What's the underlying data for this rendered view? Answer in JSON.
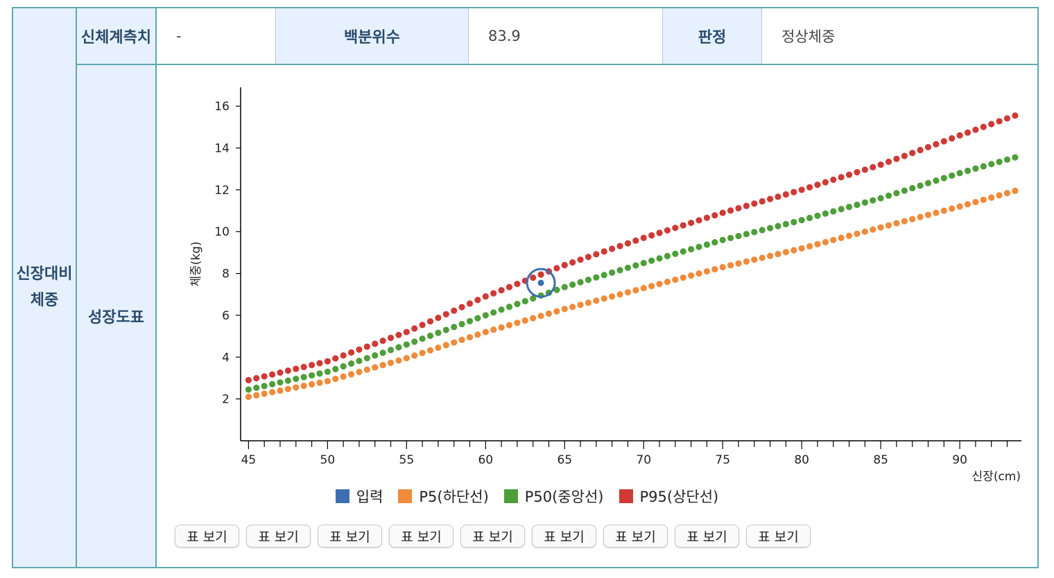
{
  "row_header": "신장대비\n체중",
  "measure_label": "신체계측치",
  "measure_value": "-",
  "percentile_label": "백분위수",
  "percentile_value": "83.9",
  "judgment_label": "판정",
  "judgment_value": "정상체중",
  "chart_section_label": "성장도표",
  "table_button_label": "표 보기",
  "table_button_count": 9,
  "colors": {
    "border": "#5fa8b0",
    "header_bg": "#e6f1fd",
    "input": "#3d6fb0",
    "p5": "#ef8b3a",
    "p50": "#4e9e3a",
    "p95": "#cf3a35"
  },
  "chart_data": {
    "type": "scatter",
    "xlabel": "신장(cm)",
    "ylabel": "체중(kg)",
    "xlim": [
      44.5,
      93.9
    ],
    "ylim": [
      0,
      16.9
    ],
    "x_ticks": [
      45,
      50,
      55,
      60,
      65,
      70,
      75,
      80,
      85,
      90
    ],
    "y_ticks": [
      2,
      4,
      6,
      8,
      10,
      12,
      14,
      16
    ],
    "x_range": [
      45,
      93.5
    ],
    "x_step": 0.5,
    "legend_position": "bottom",
    "series": [
      {
        "name": "입력",
        "color": "#3d6fb0",
        "points": [
          [
            63.5,
            7.55
          ]
        ]
      },
      {
        "name": "P5(하단선)",
        "color": "#ef8b3a",
        "anchors": [
          [
            45,
            2.1
          ],
          [
            50,
            2.85
          ],
          [
            55,
            3.95
          ],
          [
            60,
            5.2
          ],
          [
            65,
            6.3
          ],
          [
            70,
            7.3
          ],
          [
            75,
            8.3
          ],
          [
            80,
            9.2
          ],
          [
            85,
            10.2
          ],
          [
            90,
            11.2
          ],
          [
            93.5,
            11.95
          ]
        ]
      },
      {
        "name": "P50(중앙선)",
        "color": "#4e9e3a",
        "anchors": [
          [
            45,
            2.45
          ],
          [
            50,
            3.3
          ],
          [
            55,
            4.6
          ],
          [
            60,
            6.0
          ],
          [
            65,
            7.35
          ],
          [
            70,
            8.5
          ],
          [
            75,
            9.6
          ],
          [
            80,
            10.55
          ],
          [
            85,
            11.6
          ],
          [
            90,
            12.8
          ],
          [
            93.5,
            13.55
          ]
        ]
      },
      {
        "name": "P95(상단선)",
        "color": "#cf3a35",
        "anchors": [
          [
            45,
            2.9
          ],
          [
            50,
            3.8
          ],
          [
            55,
            5.2
          ],
          [
            60,
            6.9
          ],
          [
            65,
            8.4
          ],
          [
            70,
            9.7
          ],
          [
            75,
            10.9
          ],
          [
            80,
            12.0
          ],
          [
            85,
            13.2
          ],
          [
            90,
            14.6
          ],
          [
            93.5,
            15.55
          ]
        ]
      }
    ]
  }
}
